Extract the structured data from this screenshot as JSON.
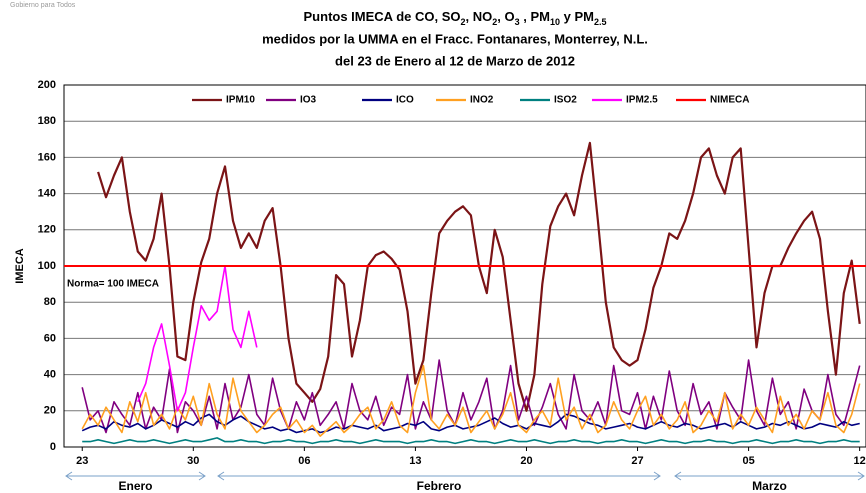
{
  "header": {
    "logo_text": "Gobierno para Todos"
  },
  "chart_data": {
    "type": "line",
    "title": [
      [
        "Puntos IMECA de CO, SO",
        "2",
        ", NO",
        "2",
        ", O",
        "3",
        " , PM",
        "10",
        " y PM",
        "2.5"
      ],
      "medidos por la UMMA en el Fracc. Fontanares, Monterrey, N.L.",
      "del 23 de Enero al 12 de Marzo de 2012"
    ],
    "y_label": "IMECA",
    "annotation": "Norma= 100 IMECA",
    "months": [
      "Enero",
      "Febrero",
      "Marzo"
    ],
    "legend": "top",
    "grid": true,
    "xlim": [
      -1.15,
      49.4
    ],
    "xticks": [
      {
        "value": 0,
        "label": "23"
      },
      {
        "value": 7,
        "label": "30"
      },
      {
        "value": 14,
        "label": "06"
      },
      {
        "value": 21,
        "label": "13"
      },
      {
        "value": 28,
        "label": "20"
      },
      {
        "value": 35,
        "label": "27"
      },
      {
        "value": 42,
        "label": "05"
      },
      {
        "value": 49,
        "label": "12"
      }
    ],
    "ylim": [
      0,
      200
    ],
    "yticks": [
      0,
      20,
      40,
      60,
      80,
      100,
      120,
      140,
      160,
      180,
      200
    ],
    "x": [
      0,
      0.5,
      1,
      1.5,
      2,
      2.5,
      3,
      3.5,
      4,
      4.5,
      5,
      5.5,
      6,
      6.5,
      7,
      7.5,
      8,
      8.5,
      9,
      9.5,
      10,
      10.5,
      11,
      11.5,
      12,
      12.5,
      13,
      13.5,
      14,
      14.5,
      15,
      15.5,
      16,
      16.5,
      17,
      17.5,
      18,
      18.5,
      19,
      19.5,
      20,
      20.5,
      21,
      21.5,
      22,
      22.5,
      23,
      23.5,
      24,
      24.5,
      25,
      25.5,
      26,
      26.5,
      27,
      27.5,
      28,
      28.5,
      29,
      29.5,
      30,
      30.5,
      31,
      31.5,
      32,
      32.5,
      33,
      33.5,
      34,
      34.5,
      35,
      35.5,
      36,
      36.5,
      37,
      37.5,
      38,
      38.5,
      39,
      39.5,
      40,
      40.5,
      41,
      41.5,
      42,
      42.5,
      43,
      43.5,
      44,
      44.5,
      45,
      45.5,
      46,
      46.5,
      47,
      47.5,
      48,
      48.5,
      49
    ],
    "series": [
      {
        "name": "IPM10",
        "color": "#7b1416",
        "values": [
          null,
          null,
          152,
          138,
          150,
          160,
          130,
          108,
          103,
          115,
          140,
          100,
          50,
          48,
          80,
          102,
          115,
          140,
          155,
          125,
          110,
          118,
          110,
          125,
          132,
          100,
          60,
          35,
          30,
          25,
          32,
          50,
          95,
          90,
          50,
          70,
          100,
          106,
          108,
          104,
          98,
          75,
          35,
          48,
          85,
          118,
          125,
          130,
          133,
          128,
          100,
          85,
          120,
          105,
          70,
          35,
          20,
          40,
          90,
          122,
          133,
          140,
          128,
          150,
          168,
          125,
          80,
          55,
          48,
          45,
          48,
          65,
          88,
          100,
          118,
          115,
          125,
          140,
          160,
          165,
          150,
          140,
          160,
          165,
          110,
          55,
          85,
          100,
          100,
          110,
          118,
          125,
          130,
          115,
          75,
          40,
          85,
          103,
          68
        ]
      },
      {
        "name": "IO3",
        "color": "#800080",
        "values": [
          33,
          15,
          20,
          8,
          25,
          18,
          12,
          30,
          10,
          22,
          15,
          43,
          8,
          25,
          20,
          12,
          28,
          10,
          35,
          15,
          22,
          40,
          18,
          12,
          38,
          20,
          10,
          25,
          15,
          30,
          12,
          18,
          25,
          10,
          35,
          20,
          15,
          28,
          12,
          22,
          18,
          40,
          10,
          25,
          15,
          48,
          20,
          12,
          30,
          15,
          25,
          38,
          10,
          20,
          45,
          15,
          28,
          12,
          22,
          35,
          18,
          10,
          40,
          20,
          15,
          25,
          12,
          45,
          20,
          18,
          30,
          10,
          28,
          15,
          42,
          20,
          12,
          35,
          18,
          25,
          10,
          30,
          22,
          15,
          48,
          20,
          12,
          38,
          18,
          25,
          10,
          32,
          20,
          15,
          40,
          18,
          12,
          28,
          45
        ]
      },
      {
        "name": "ICO",
        "color": "#000080",
        "values": [
          9,
          11,
          12,
          10,
          14,
          12,
          11,
          13,
          10,
          12,
          15,
          13,
          11,
          14,
          12,
          16,
          18,
          14,
          12,
          15,
          17,
          14,
          12,
          10,
          11,
          9,
          10,
          8,
          9,
          10,
          8,
          9,
          11,
          10,
          12,
          11,
          10,
          12,
          9,
          10,
          11,
          13,
          12,
          14,
          10,
          9,
          11,
          12,
          10,
          11,
          12,
          14,
          16,
          13,
          11,
          12,
          10,
          13,
          12,
          11,
          14,
          18,
          17,
          15,
          13,
          12,
          10,
          11,
          12,
          13,
          11,
          10,
          12,
          14,
          12,
          11,
          13,
          12,
          10,
          11,
          12,
          13,
          11,
          14,
          12,
          10,
          11,
          13,
          12,
          14,
          12,
          10,
          11,
          13,
          12,
          11,
          14,
          12,
          13
        ]
      },
      {
        "name": "INO2",
        "color": "#ffa020",
        "values": [
          10,
          18,
          12,
          22,
          15,
          8,
          25,
          14,
          30,
          12,
          18,
          10,
          22,
          15,
          28,
          12,
          35,
          18,
          10,
          38,
          20,
          14,
          8,
          12,
          18,
          22,
          10,
          15,
          8,
          12,
          6,
          10,
          14,
          8,
          12,
          18,
          22,
          10,
          15,
          25,
          12,
          8,
          30,
          45,
          15,
          10,
          18,
          12,
          22,
          8,
          14,
          20,
          10,
          18,
          30,
          12,
          8,
          15,
          20,
          12,
          38,
          15,
          22,
          10,
          18,
          8,
          12,
          25,
          15,
          10,
          20,
          28,
          12,
          18,
          10,
          15,
          25,
          8,
          12,
          20,
          14,
          30,
          10,
          18,
          12,
          22,
          15,
          8,
          28,
          12,
          18,
          10,
          20,
          15,
          30,
          12,
          8,
          18,
          35
        ]
      },
      {
        "name": "ISO2",
        "color": "#008080",
        "values": [
          3,
          3,
          4,
          3,
          2,
          3,
          4,
          3,
          3,
          4,
          3,
          2,
          3,
          4,
          3,
          3,
          4,
          5,
          3,
          3,
          4,
          3,
          3,
          2,
          3,
          3,
          4,
          3,
          3,
          2,
          3,
          3,
          4,
          3,
          3,
          2,
          3,
          4,
          3,
          3,
          3,
          2,
          3,
          3,
          4,
          3,
          3,
          2,
          3,
          4,
          3,
          3,
          2,
          3,
          4,
          3,
          3,
          4,
          3,
          2,
          3,
          3,
          4,
          3,
          3,
          2,
          3,
          3,
          4,
          3,
          3,
          2,
          3,
          4,
          3,
          3,
          2,
          3,
          3,
          4,
          3,
          3,
          2,
          3,
          3,
          4,
          3,
          2,
          3,
          3,
          4,
          3,
          3,
          2,
          3,
          3,
          4,
          3,
          3
        ]
      },
      {
        "name": "IPM2.5",
        "color": "#ff00ff",
        "x": [
          3.5,
          4,
          4.5,
          5,
          5.5,
          6,
          6.5,
          7,
          7.5,
          8,
          8.5,
          9,
          9.5,
          10,
          10.5,
          11
        ],
        "values": [
          25,
          35,
          55,
          68,
          45,
          20,
          30,
          55,
          78,
          70,
          75,
          100,
          65,
          55,
          75,
          55
        ]
      },
      {
        "name": "NIMECA",
        "color": "#ff0000",
        "hline": 100
      }
    ]
  }
}
